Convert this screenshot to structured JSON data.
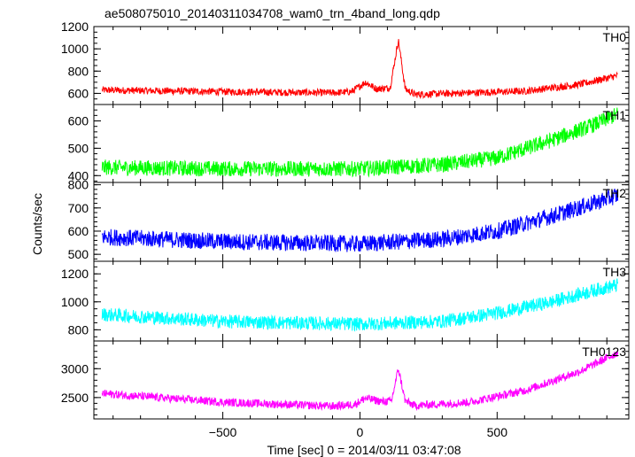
{
  "chart_data": {
    "type": "line",
    "title": "ae508075010_20140311034708_wam0_trn_4band_long.qdp",
    "xlabel": "Time [sec] 0 = 2014/03/11 03:47:08",
    "ylabel": "Counts/sec",
    "xlim": [
      -970,
      980
    ],
    "x_ticks": [
      -500,
      0,
      500
    ],
    "x_tick_labels": [
      "−500",
      "0",
      "500"
    ],
    "panels": [
      {
        "name": "TH0",
        "color": "#ff0000",
        "ylim": [
          500,
          1200
        ],
        "y_ticks": [
          600,
          800,
          1000,
          1200
        ],
        "y_tick_labels": [
          "600",
          "800",
          "1000",
          "1200"
        ],
        "noise": 25,
        "curve": [
          [
            -940,
            630
          ],
          [
            -500,
            615
          ],
          [
            -100,
            605
          ],
          [
            -30,
            615
          ],
          [
            20,
            700
          ],
          [
            60,
            640
          ],
          [
            110,
            650
          ],
          [
            140,
            1080
          ],
          [
            165,
            640
          ],
          [
            200,
            590
          ],
          [
            400,
            605
          ],
          [
            600,
            620
          ],
          [
            800,
            680
          ],
          [
            940,
            760
          ]
        ]
      },
      {
        "name": "TH1",
        "color": "#00ff00",
        "ylim": [
          375,
          660
        ],
        "y_ticks": [
          400,
          500,
          600
        ],
        "y_tick_labels": [
          "400",
          "500",
          "600"
        ],
        "noise": 22,
        "curve": [
          [
            -940,
            430
          ],
          [
            -500,
            425
          ],
          [
            0,
            425
          ],
          [
            300,
            440
          ],
          [
            500,
            465
          ],
          [
            700,
            530
          ],
          [
            850,
            585
          ],
          [
            940,
            625
          ]
        ]
      },
      {
        "name": "TH2",
        "color": "#0000ff",
        "ylim": [
          470,
          810
        ],
        "y_ticks": [
          500,
          600,
          700,
          800
        ],
        "y_tick_labels": [
          "500",
          "600",
          "700",
          "800"
        ],
        "noise": 28,
        "curve": [
          [
            -940,
            575
          ],
          [
            -500,
            555
          ],
          [
            0,
            545
          ],
          [
            300,
            565
          ],
          [
            500,
            600
          ],
          [
            700,
            665
          ],
          [
            850,
            720
          ],
          [
            940,
            755
          ]
        ]
      },
      {
        "name": "TH3",
        "color": "#00ffff",
        "ylim": [
          720,
          1290
        ],
        "y_ticks": [
          800,
          1000,
          1200
        ],
        "y_tick_labels": [
          "800",
          "1000",
          "1200"
        ],
        "noise": 38,
        "curve": [
          [
            -940,
            910
          ],
          [
            -500,
            860
          ],
          [
            0,
            840
          ],
          [
            300,
            860
          ],
          [
            500,
            920
          ],
          [
            700,
            1000
          ],
          [
            850,
            1080
          ],
          [
            940,
            1120
          ]
        ]
      },
      {
        "name": "TH0123",
        "color": "#ff00ff",
        "ylim": [
          2130,
          3480
        ],
        "y_ticks": [
          2500,
          3000
        ],
        "y_tick_labels": [
          "2500",
          "3000"
        ],
        "noise": 55,
        "curve": [
          [
            -940,
            2570
          ],
          [
            -500,
            2420
          ],
          [
            -100,
            2350
          ],
          [
            -20,
            2380
          ],
          [
            20,
            2490
          ],
          [
            80,
            2430
          ],
          [
            115,
            2440
          ],
          [
            140,
            3000
          ],
          [
            165,
            2440
          ],
          [
            200,
            2360
          ],
          [
            400,
            2420
          ],
          [
            600,
            2620
          ],
          [
            800,
            2950
          ],
          [
            940,
            3280
          ]
        ]
      }
    ]
  }
}
